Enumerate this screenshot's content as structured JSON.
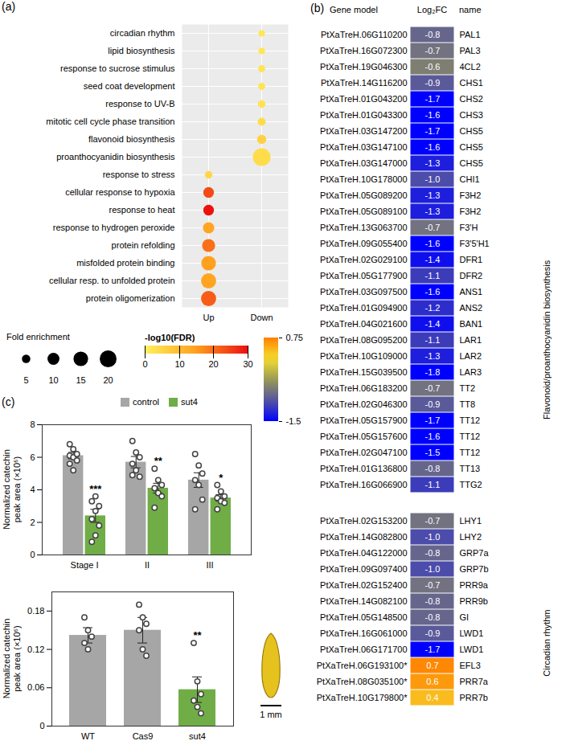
{
  "chart_data": [
    {
      "panel_label": "(a)",
      "type": "bubble",
      "categories": [
        "circadian rhythm",
        "lipid biosynthesis",
        "response to sucrose stimulus",
        "seed coat development",
        "response to UV-B",
        "mitotic cell cycle phase transition",
        "flavonoid biosynthesis",
        "proanthocyanidin biosynthesis",
        "response to stress",
        "cellular response to hypoxia",
        "response to heat",
        "response to hydrogen peroxide",
        "protein refolding",
        "misfolded protein binding",
        "cellular resp. to unfolded protein",
        "protein oligomerization"
      ],
      "column": [
        "Down",
        "Down",
        "Down",
        "Down",
        "Down",
        "Down",
        "Down",
        "Down",
        "Up",
        "Up",
        "Up",
        "Up",
        "Up",
        "Up",
        "Up",
        "Up"
      ],
      "x_categories": [
        "Up",
        "Down"
      ],
      "sizes": [
        3,
        3,
        3.5,
        3.5,
        4,
        4.5,
        6,
        22,
        4,
        8,
        8,
        9,
        12,
        15,
        16,
        16
      ],
      "values": [
        2,
        2,
        2.5,
        2.5,
        3,
        4,
        6,
        4,
        5,
        24,
        30,
        14,
        20,
        15,
        14,
        22
      ],
      "grid": true,
      "size_legend": {
        "title": "Fold enrichment",
        "values": [
          5,
          10,
          15,
          20
        ]
      },
      "color_bar": {
        "title": "-log10(FDR)",
        "range": [
          0,
          30
        ],
        "ticks": [
          0,
          10,
          20,
          30
        ]
      }
    },
    {
      "panel_label": "(b)",
      "type": "heatmap",
      "column_headers": [
        "Gene model",
        "Log₂FC",
        "name"
      ],
      "data_labels": true,
      "color_bar": {
        "range": [
          -1.5,
          0.75
        ],
        "ticks": [
          0.75,
          -1.5
        ]
      },
      "groups": [
        {
          "name": "Flavonoid/proanthocyanidin biosynthesis",
          "gene_models": [
            "PtXaTreH.06G110200",
            "PtXaTreH.16G072300",
            "PtXaTreH.19G046300",
            "PtXaTreH.14G116200",
            "PtXaTreH.01G043200",
            "PtXaTreH.01G043300",
            "PtXaTreH.03G147200",
            "PtXaTreH.03G147100",
            "PtXaTreH.03G147000",
            "PtXaTreH.10G178000",
            "PtXaTreH.05G089200",
            "PtXaTreH.05G089100",
            "PtXaTreH.13G063700",
            "PtXaTreH.09G055400",
            "PtXaTreH.02G029100",
            "PtXaTreH.05G177900",
            "PtXaTreH.03G097500",
            "PtXaTreH.01G094900",
            "PtXaTreH.04G021600",
            "PtXaTreH.08G095200",
            "PtXaTreH.10G109000",
            "PtXaTreH.15G039500",
            "PtXaTreH.06G183200",
            "PtXaTreH.02G046300",
            "PtXaTreH.05G157900",
            "PtXaTreH.05G157600",
            "PtXaTreH.02G047100",
            "PtXaTreH.01G136800",
            "PtXaTreH.16G066900"
          ],
          "values": [
            -0.8,
            -0.7,
            -0.6,
            -0.9,
            -1.7,
            -1.6,
            -1.7,
            -1.6,
            -1.3,
            -1.0,
            -1.3,
            -1.3,
            -0.7,
            -1.6,
            -1.4,
            -1.1,
            -1.6,
            -1.2,
            -1.4,
            -1.1,
            -1.3,
            -1.8,
            -0.7,
            -0.9,
            -1.7,
            -1.6,
            -1.5,
            -0.8,
            -1.1
          ],
          "value_labels": [
            "-0.8",
            "-0.7",
            "-0.6",
            "-0.9",
            "-1.7",
            "-1.6",
            "-1.7",
            "-1.6",
            "-1.3",
            "-1.0",
            "-1.3",
            "-1.3",
            "-0.7",
            "-1.6",
            "-1.4",
            "-1.1",
            "-1.6",
            "-1.2",
            "-1.4",
            "-1.1",
            "-1.3",
            "-1.8",
            "-0.7",
            "-0.9",
            "-1.7",
            "-1.6",
            "-1.5",
            "-0.8",
            "-1.1"
          ],
          "names": [
            "PAL1",
            "PAL3",
            "4CL2",
            "CHS1",
            "CHS2",
            "CHS3",
            "CHS5",
            "CHS5",
            "CHS5",
            "CHI1",
            "F3H2",
            "F3H2",
            "F3'H",
            "F3'5'H1",
            "DFR1",
            "DFR2",
            "ANS1",
            "ANS2",
            "BAN1",
            "LAR1",
            "LAR2",
            "LAR3",
            "TT2",
            "TT8",
            "TT12",
            "TT12",
            "TT12",
            "TT13",
            "TTG2"
          ]
        },
        {
          "name": "Circadian rhythm",
          "gene_models": [
            "PtXaTreH.02G153200",
            "PtXaTreH.14G082800",
            "PtXaTreH.04G122000",
            "PtXaTreH.09G097400",
            "PtXaTreH.02G152400",
            "PtXaTreH.14G082100",
            "PtXaTreH.05G148500",
            "PtXaTreH.16G061000",
            "PtXaTreH.06G171700",
            "PtXaTreH.06G193100*",
            "PtXaTreH.08G035100*",
            "PtXaTreH.10G179800*"
          ],
          "values": [
            -0.7,
            -1.0,
            -0.8,
            -1.0,
            -0.7,
            -0.8,
            -0.8,
            -0.9,
            -1.7,
            0.7,
            0.6,
            0.4
          ],
          "value_labels": [
            "-0.7",
            "-1.0",
            "-0.8",
            "-1.0",
            "-0.7",
            "-0.8",
            "-0.8",
            "-0.9",
            "-1.7",
            "0.7",
            "0.6",
            "0.4"
          ],
          "names": [
            "LHY1",
            "LHY2",
            "GRP7a",
            "GRP7b",
            "PRR9a",
            "PRR9b",
            "GI",
            "LWD1",
            "LWD1",
            "EFL3",
            "PRR7a",
            "PRR7b"
          ]
        }
      ]
    },
    {
      "panel_label": "(c)",
      "type": "bar",
      "categories": [
        "Stage I",
        "II",
        "III"
      ],
      "ylabel": "Normalized catechin peak area (×10⁶)",
      "ylim": [
        0,
        8
      ],
      "yticks": [
        0,
        2,
        4,
        6,
        8
      ],
      "legend": "top",
      "series": [
        {
          "name": "control",
          "color": "#a6a6a6",
          "values": [
            6.1,
            5.7,
            4.6
          ],
          "errors": [
            0.2,
            0.35,
            0.45
          ],
          "points": [
            [
              6.8,
              6.5,
              6.2,
              6.1,
              6.0,
              5.8,
              5.6,
              5.2
            ],
            [
              7.0,
              6.3,
              6.0,
              5.6,
              5.2,
              4.8,
              4.9
            ],
            [
              6.2,
              5.5,
              5.0,
              4.6,
              4.3,
              3.4,
              2.8
            ]
          ]
        },
        {
          "name": "sut4",
          "color": "#70ad47",
          "values": [
            2.4,
            4.1,
            3.5
          ],
          "errors": [
            0.4,
            0.3,
            0.2
          ],
          "points": [
            [
              0.8,
              1.2,
              1.8,
              2.2,
              2.7,
              3.0,
              3.3,
              3.6
            ],
            [
              5.3,
              4.6,
              4.3,
              4.1,
              3.8,
              3.6,
              2.9
            ],
            [
              4.3,
              3.9,
              3.6,
              3.5,
              3.3,
              3.2,
              2.8
            ]
          ],
          "significance": [
            "***",
            "**",
            "*"
          ]
        }
      ]
    },
    {
      "type": "bar",
      "categories": [
        "WT",
        "Cas9",
        "sut4"
      ],
      "values": [
        0.142,
        0.15,
        0.057
      ],
      "errors": [
        0.012,
        0.02,
        0.02
      ],
      "colors": [
        "#a6a6a6",
        "#a6a6a6",
        "#70ad47"
      ],
      "points": [
        [
          0.17,
          0.15,
          0.14,
          0.13,
          0.12
        ],
        [
          0.19,
          0.17,
          0.16,
          0.15,
          0.12,
          0.11
        ],
        [
          0.13,
          0.07,
          0.05,
          0.04,
          0.03,
          0.02
        ]
      ],
      "significance": [
        null,
        null,
        "**"
      ],
      "ylabel": "Normalized catechin peak area (×10⁶)",
      "ylim": [
        0,
        0.21
      ],
      "yticks": [
        0,
        0.06,
        0.12,
        0.18
      ],
      "inset_scale_label": "1 mm"
    }
  ]
}
